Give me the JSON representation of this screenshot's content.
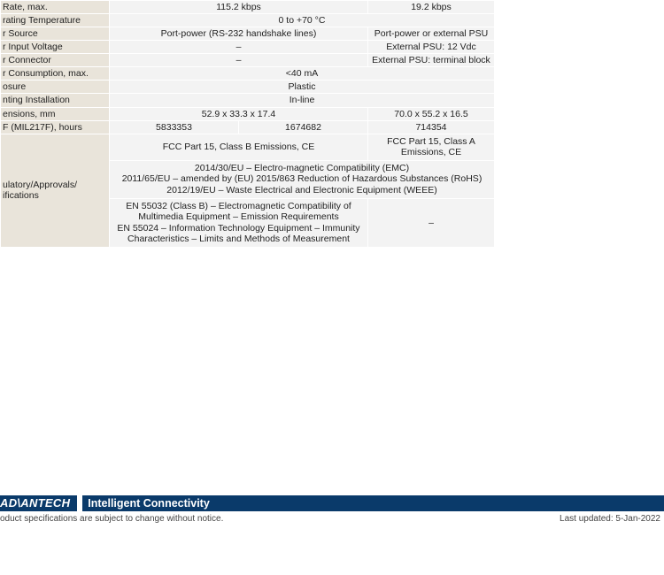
{
  "rows": {
    "rate_label": "Rate, max.",
    "rate_c2c3": "115.2 kbps",
    "rate_c4": "19.2 kbps",
    "temp_label": "rating Temperature",
    "temp_val": "0 to +70 °C",
    "src_label": "r Source",
    "src_c2c3": "Port-power (RS-232 handshake lines)",
    "src_c4": "Port-power or external PSU",
    "vin_label": "r Input Voltage",
    "vin_c2c3": "–",
    "vin_c4": "External PSU: 12 Vdc",
    "conn_label": "r Connector",
    "conn_c2c3": "–",
    "conn_c4": "External PSU: terminal block",
    "cons_label": "r Consumption, max.",
    "cons_val": "<40 mA",
    "enc_label": "osure",
    "enc_val": "Plastic",
    "mount_label": "nting Installation",
    "mount_val": "In-line",
    "dim_label": "ensions, mm",
    "dim_c2c3": "52.9 x 33.3 x 17.4",
    "dim_c4": "70.0 x 55.2 x 16.5",
    "mtbf_label": "F (MIL217F), hours",
    "mtbf_c2": "5833353",
    "mtbf_c3": "1674682",
    "mtbf_c4": "714354",
    "reg_label": "ulatory/Approvals/\nifications",
    "reg_r1_c2c3": "FCC Part 15, Class B Emissions, CE",
    "reg_r1_c4": "FCC Part 15, Class A\nEmissions, CE",
    "reg_r2": "2014/30/EU – Electro-magnetic Compatibility (EMC)\n2011/65/EU – amended by (EU) 2015/863 Reduction of Hazardous Substances (RoHS)\n2012/19/EU – Waste Electrical and Electronic Equipment (WEEE)",
    "reg_r3_c2c3": "EN 55032 (Class B) – Electromagnetic Compatibility of\nMultimedia Equipment – Emission Requirements\nEN 55024 – Information Technology Equipment – Immunity\nCharacteristics – Limits and Methods of Measurement",
    "reg_r3_c4": "–"
  },
  "footer": {
    "brand": "AD\\ANTECH",
    "tagline": "Intelligent Connectivity",
    "note": "oduct specifications are subject to change without notice.",
    "updated": "Last updated: 5-Jan-2022"
  },
  "colors": {
    "label_bg": "#e9e4da",
    "val_bg": "#f3f3f3",
    "footer_bg": "#0a3a6a"
  }
}
